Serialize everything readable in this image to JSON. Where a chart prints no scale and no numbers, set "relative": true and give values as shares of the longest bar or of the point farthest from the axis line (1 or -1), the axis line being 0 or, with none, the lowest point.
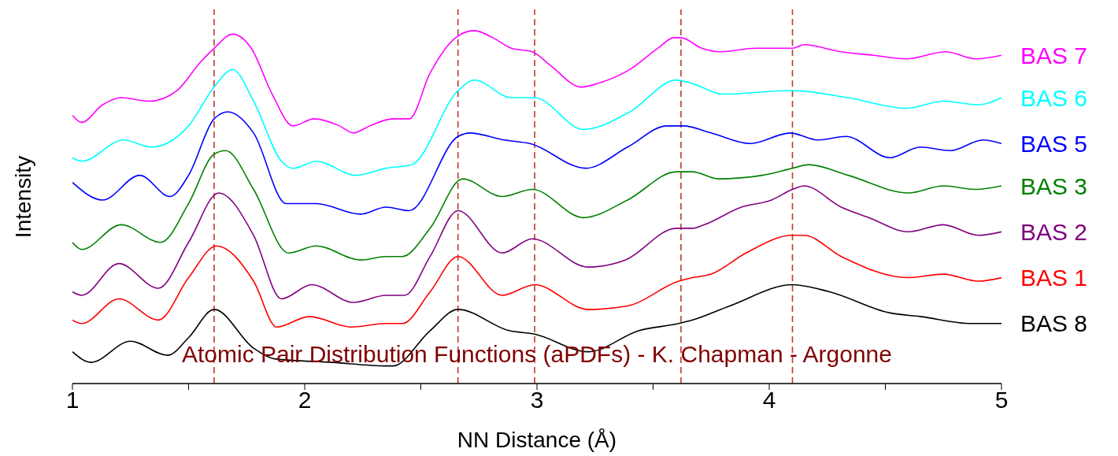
{
  "chart_data": {
    "type": "line",
    "relative": true,
    "xlabel": "NN Distance (Å)",
    "ylabel": "Intensity",
    "xlim": [
      1,
      5
    ],
    "xticks": [
      1,
      {
        "value": 1.5,
        "label": null
      },
      2,
      {
        "value": 2.5,
        "label": null
      },
      3,
      {
        "value": 3.5,
        "label": null
      },
      4,
      {
        "value": 4.5,
        "label": null
      },
      5
    ],
    "marker": "none",
    "line_style": "solid",
    "annotations": [
      "Atomic Pair Distribution Functions (aPDFs) - K. Chapman - Argonne"
    ],
    "ref_lines": [
      {
        "axis": "x",
        "value": 1.61,
        "color": "#c0392b",
        "line_style": "dashed"
      },
      {
        "axis": "x",
        "value": 2.66,
        "color": "#c0392b",
        "line_style": "dashed"
      },
      {
        "axis": "x",
        "value": 2.99,
        "color": "#c0392b",
        "line_style": "dashed"
      },
      {
        "axis": "x",
        "value": 3.62,
        "color": "#c0392b",
        "line_style": "dashed"
      },
      {
        "axis": "x",
        "value": 4.1,
        "color": "#c0392b",
        "line_style": "dashed"
      }
    ],
    "series": [
      {
        "name": "BAS 7",
        "color": "#ff00ff",
        "x": [
          1.0,
          1.04,
          1.13,
          1.21,
          1.33,
          1.45,
          1.55,
          1.61,
          1.69,
          1.77,
          1.86,
          1.95,
          2.04,
          2.15,
          2.21,
          2.28,
          2.38,
          2.45,
          2.54,
          2.65,
          2.73,
          2.81,
          2.89,
          2.98,
          3.06,
          3.19,
          3.26,
          3.4,
          3.52,
          3.59,
          3.62,
          3.71,
          3.79,
          3.94,
          4.1,
          4.15,
          4.31,
          4.45,
          4.59,
          4.76,
          4.89,
          5.0
        ],
        "values": [
          0.76,
          0.74,
          0.79,
          0.81,
          0.8,
          0.83,
          0.91,
          0.95,
          0.99,
          0.95,
          0.82,
          0.73,
          0.75,
          0.73,
          0.71,
          0.73,
          0.75,
          0.75,
          0.88,
          0.98,
          1.0,
          0.98,
          0.95,
          0.94,
          0.9,
          0.84,
          0.85,
          0.89,
          0.95,
          0.98,
          0.98,
          0.95,
          0.94,
          0.95,
          0.95,
          0.96,
          0.94,
          0.93,
          0.92,
          0.94,
          0.92,
          0.93
        ]
      },
      {
        "name": "BAS 6",
        "color": "#00ffff",
        "x": [
          1.0,
          1.04,
          1.22,
          1.34,
          1.5,
          1.61,
          1.69,
          1.78,
          1.9,
          1.95,
          2.05,
          2.22,
          2.35,
          2.46,
          2.66,
          2.73,
          2.89,
          2.99,
          3.2,
          3.4,
          3.6,
          3.67,
          3.8,
          4.1,
          4.34,
          4.59,
          4.75,
          4.9,
          5.0
        ],
        "values": [
          0.64,
          0.63,
          0.69,
          0.67,
          0.73,
          0.84,
          0.89,
          0.8,
          0.63,
          0.61,
          0.63,
          0.59,
          0.61,
          0.62,
          0.83,
          0.86,
          0.81,
          0.81,
          0.72,
          0.77,
          0.86,
          0.85,
          0.82,
          0.83,
          0.81,
          0.78,
          0.8,
          0.79,
          0.81
        ]
      },
      {
        "name": "BAS 5",
        "color": "#0000ff",
        "x": [
          1.0,
          1.13,
          1.29,
          1.42,
          1.5,
          1.61,
          1.67,
          1.78,
          1.92,
          2.05,
          2.24,
          2.35,
          2.45,
          2.66,
          2.71,
          2.86,
          2.97,
          3.21,
          3.39,
          3.56,
          3.63,
          3.75,
          3.92,
          4.09,
          4.21,
          4.33,
          4.52,
          4.65,
          4.78,
          4.92,
          5.0
        ],
        "values": [
          0.57,
          0.52,
          0.59,
          0.53,
          0.59,
          0.75,
          0.77,
          0.71,
          0.51,
          0.51,
          0.48,
          0.5,
          0.49,
          0.7,
          0.71,
          0.69,
          0.68,
          0.61,
          0.67,
          0.73,
          0.73,
          0.71,
          0.68,
          0.71,
          0.69,
          0.7,
          0.64,
          0.67,
          0.66,
          0.69,
          0.68
        ]
      },
      {
        "name": "BAS 3",
        "color": "#008000",
        "x": [
          1.0,
          1.04,
          1.21,
          1.38,
          1.5,
          1.61,
          1.66,
          1.78,
          1.93,
          2.05,
          2.24,
          2.35,
          2.42,
          2.54,
          2.68,
          2.85,
          2.98,
          3.2,
          3.39,
          3.6,
          3.67,
          3.78,
          3.97,
          4.1,
          4.17,
          4.34,
          4.6,
          4.75,
          4.89,
          5.0
        ],
        "values": [
          0.4,
          0.38,
          0.45,
          0.4,
          0.51,
          0.65,
          0.66,
          0.55,
          0.37,
          0.39,
          0.35,
          0.36,
          0.36,
          0.44,
          0.58,
          0.53,
          0.55,
          0.47,
          0.52,
          0.6,
          0.6,
          0.58,
          0.59,
          0.61,
          0.62,
          0.59,
          0.54,
          0.56,
          0.55,
          0.56
        ]
      },
      {
        "name": "BAS 2",
        "color": "#800080",
        "x": [
          1.0,
          1.04,
          1.2,
          1.37,
          1.5,
          1.63,
          1.78,
          1.9,
          2.03,
          2.21,
          2.35,
          2.43,
          2.54,
          2.66,
          2.85,
          2.98,
          3.22,
          3.38,
          3.6,
          3.67,
          3.72,
          3.88,
          4.01,
          4.1,
          4.15,
          4.31,
          4.43,
          4.6,
          4.75,
          4.9,
          5.0
        ],
        "values": [
          0.26,
          0.25,
          0.34,
          0.27,
          0.4,
          0.54,
          0.42,
          0.24,
          0.28,
          0.23,
          0.25,
          0.25,
          0.36,
          0.49,
          0.37,
          0.41,
          0.33,
          0.35,
          0.44,
          0.44,
          0.45,
          0.5,
          0.52,
          0.55,
          0.56,
          0.5,
          0.47,
          0.43,
          0.45,
          0.42,
          0.43
        ]
      },
      {
        "name": "BAS 1",
        "color": "#ff0000",
        "x": [
          1.0,
          1.04,
          1.2,
          1.37,
          1.5,
          1.62,
          1.78,
          1.88,
          2.02,
          2.2,
          2.35,
          2.42,
          2.54,
          2.66,
          2.85,
          2.99,
          3.22,
          3.39,
          3.61,
          3.67,
          3.75,
          3.9,
          4.1,
          4.15,
          4.31,
          4.6,
          4.75,
          4.9,
          5.0
        ],
        "values": [
          0.18,
          0.17,
          0.24,
          0.18,
          0.3,
          0.39,
          0.29,
          0.16,
          0.19,
          0.16,
          0.17,
          0.17,
          0.26,
          0.36,
          0.25,
          0.28,
          0.21,
          0.22,
          0.29,
          0.3,
          0.31,
          0.37,
          0.42,
          0.42,
          0.36,
          0.3,
          0.31,
          0.29,
          0.3
        ]
      },
      {
        "name": "BAS 8",
        "color": "#000000",
        "x": [
          1.0,
          1.08,
          1.25,
          1.41,
          1.5,
          1.61,
          1.78,
          1.87,
          2.12,
          2.35,
          2.38,
          2.54,
          2.66,
          2.88,
          2.99,
          3.22,
          3.44,
          3.61,
          3.67,
          3.83,
          4.1,
          4.26,
          4.52,
          4.65,
          4.87,
          5.0
        ],
        "values": [
          0.09,
          0.06,
          0.12,
          0.08,
          0.13,
          0.21,
          0.1,
          0.07,
          0.06,
          0.05,
          0.05,
          0.15,
          0.21,
          0.15,
          0.14,
          0.09,
          0.15,
          0.17,
          0.18,
          0.22,
          0.28,
          0.26,
          0.2,
          0.19,
          0.17,
          0.17
        ]
      }
    ]
  }
}
